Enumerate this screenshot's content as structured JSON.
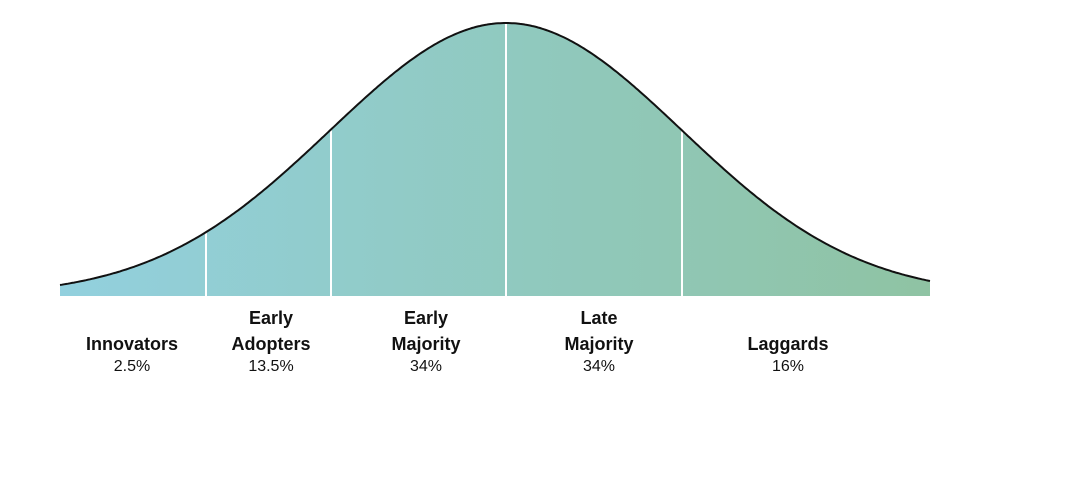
{
  "diagram": {
    "type": "adoption-curve",
    "gradient": {
      "start": "#92d0de",
      "end": "#8fc3a3"
    },
    "curve_color": "#111111",
    "divider_color": "#ffffff"
  },
  "segments": [
    {
      "name": "Innovators",
      "percent": "2.5%"
    },
    {
      "name": "Early\nAdopters",
      "percent": "13.5%"
    },
    {
      "name": "Early\nMajority",
      "percent": "34%"
    },
    {
      "name": "Late\nMajority",
      "percent": "34%"
    },
    {
      "name": "Laggards",
      "percent": "16%"
    }
  ]
}
